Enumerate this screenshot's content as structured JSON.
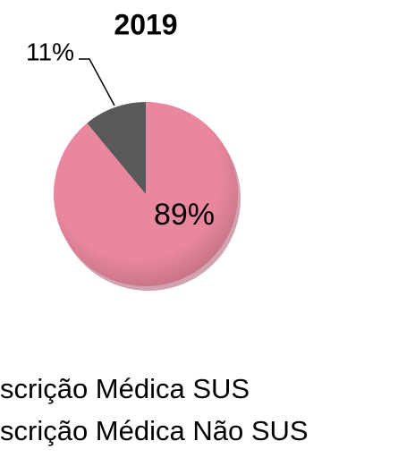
{
  "chart_data": {
    "type": "pie",
    "title": "2019",
    "categories": [
      "scrição Médica SUS",
      "scrição Médica Não SUS"
    ],
    "values": [
      89,
      11
    ],
    "value_labels": [
      "89%",
      "11%"
    ],
    "colors": [
      "#e9879f",
      "#595959"
    ]
  }
}
